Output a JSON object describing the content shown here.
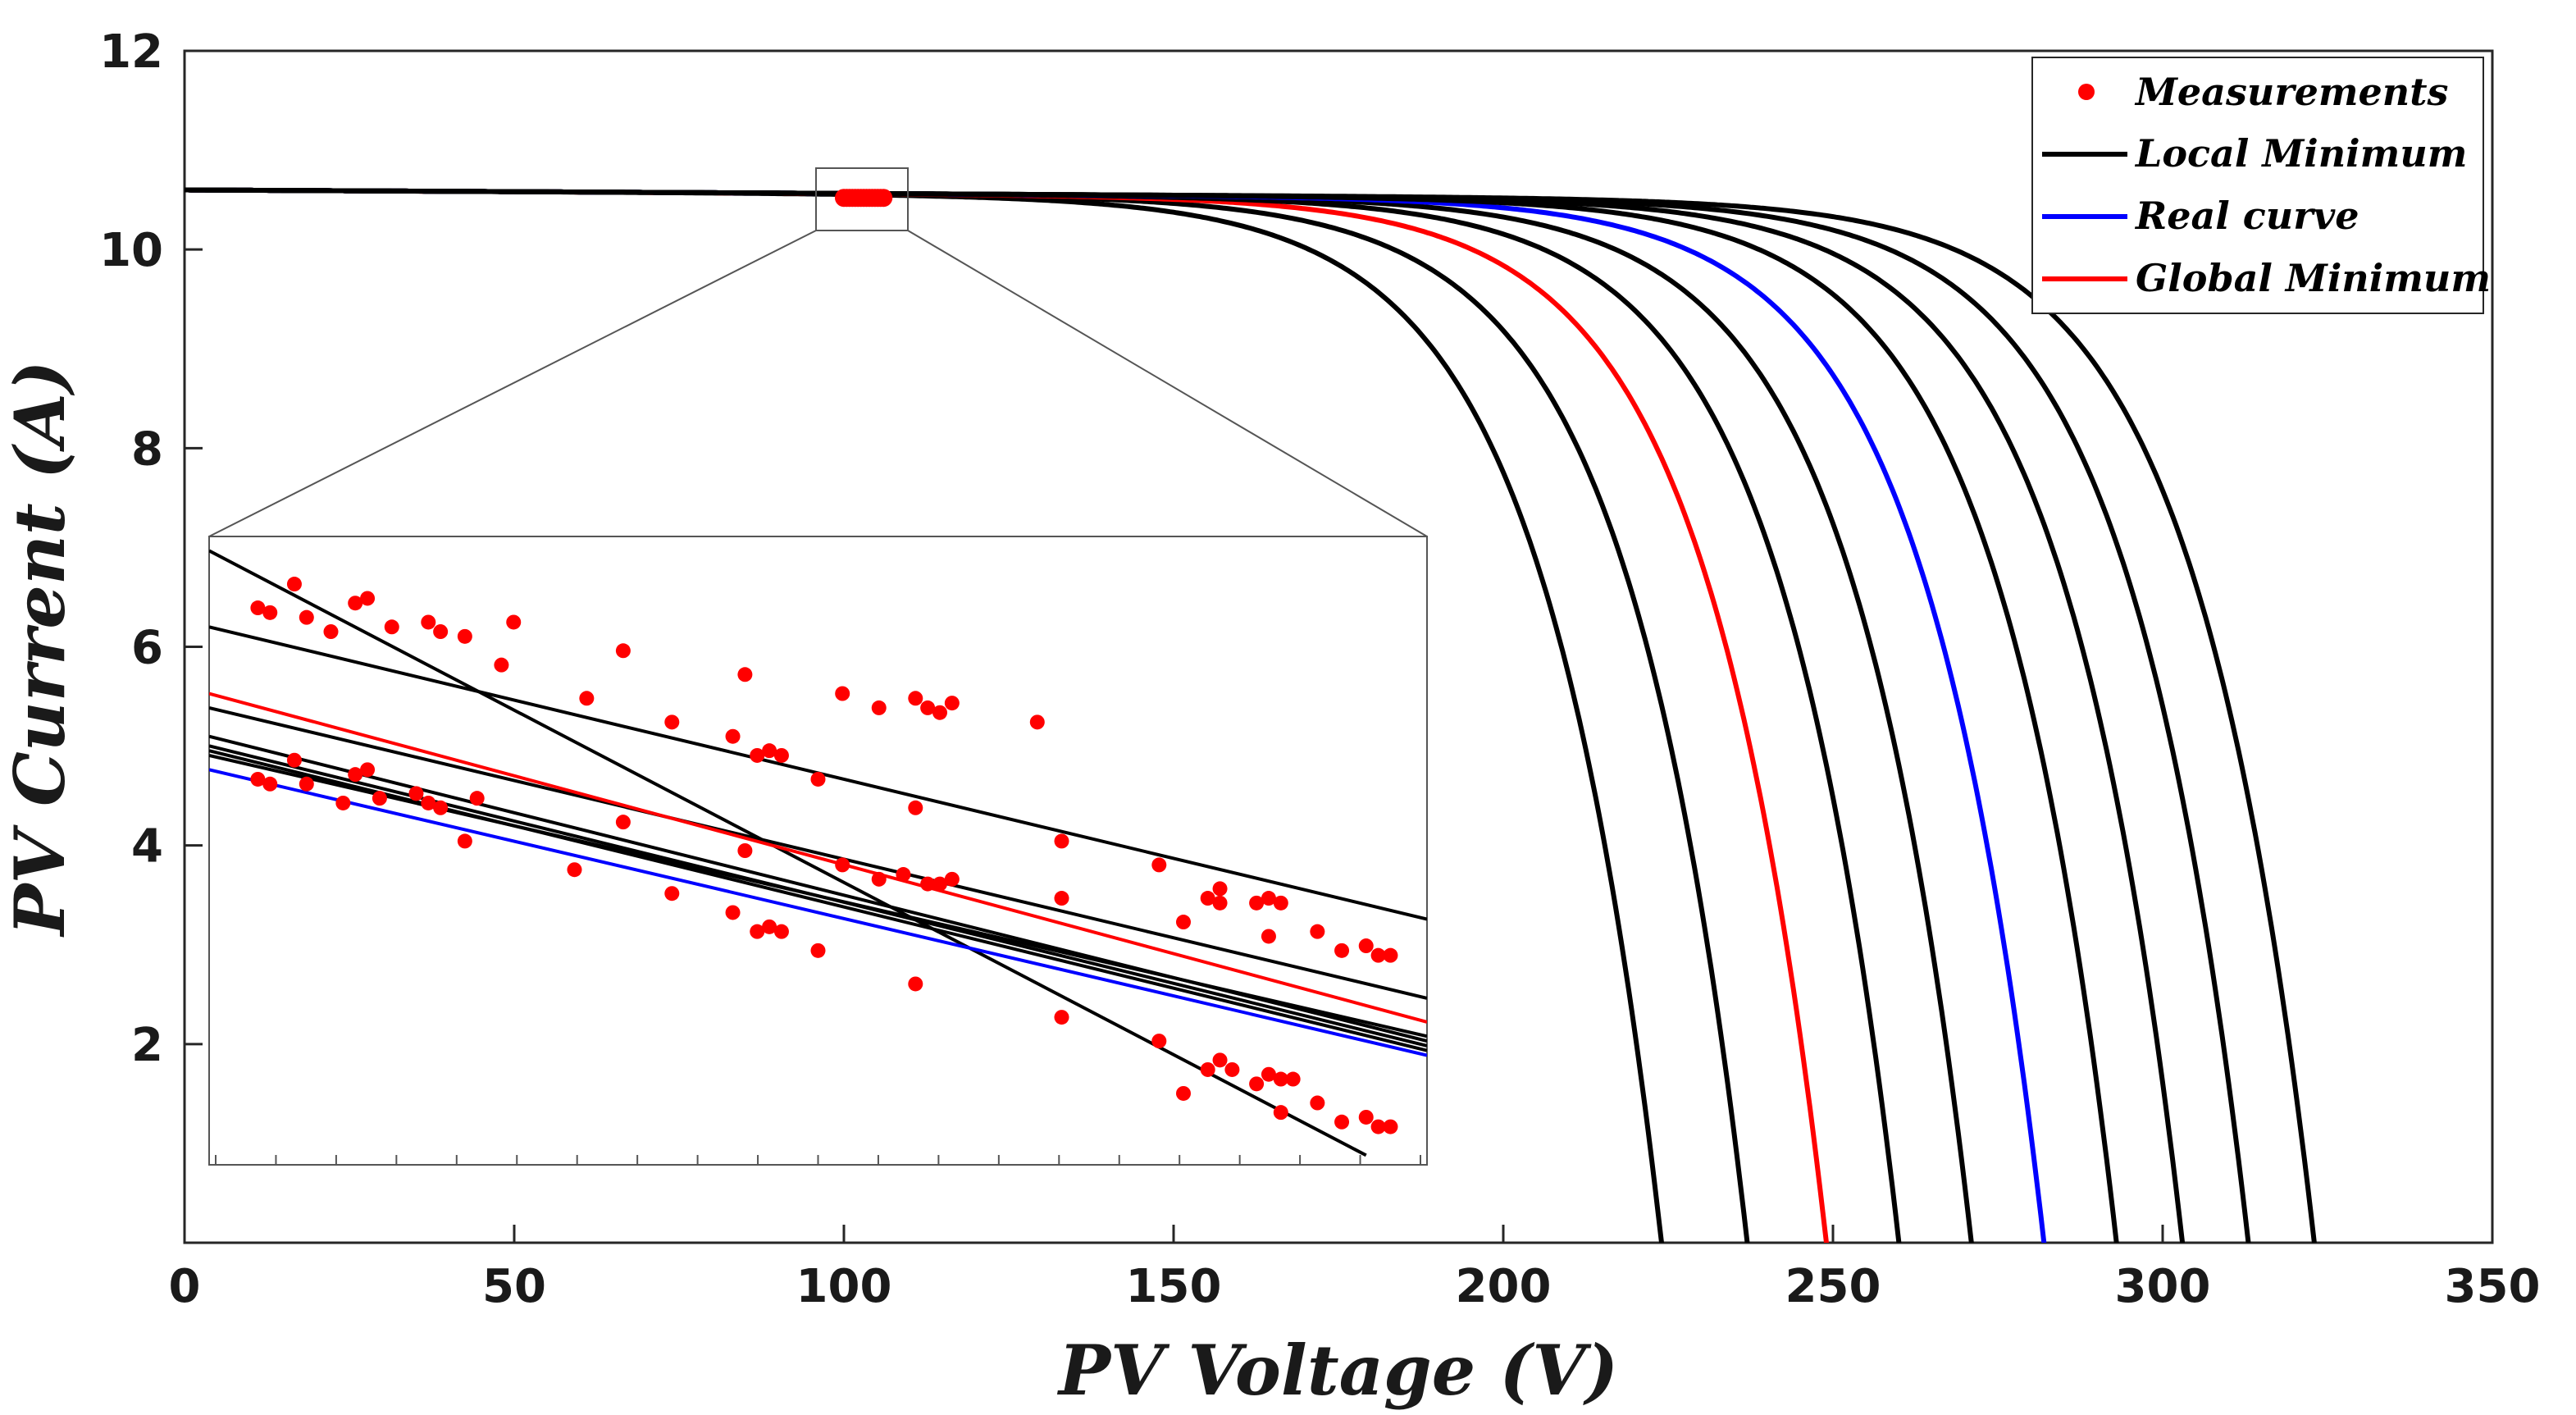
{
  "chart_data": {
    "type": "line",
    "xlabel": "PV Voltage (V)",
    "ylabel": "PV Current (A)",
    "xlim": [
      0,
      350
    ],
    "ylim": [
      0,
      12
    ],
    "xticks": [
      "0",
      "50",
      "100",
      "150",
      "200",
      "250",
      "300",
      "350"
    ],
    "yticks": [
      "2",
      "4",
      "6",
      "8",
      "10",
      "12"
    ],
    "grid": false,
    "legend_position": "top-right",
    "legend": [
      {
        "label": "Measurements",
        "kind": "marker",
        "color": "#ff0000"
      },
      {
        "label": "Local Minimum",
        "kind": "line",
        "color": "#000000"
      },
      {
        "label": "Real curve",
        "kind": "line",
        "color": "#0000ff"
      },
      {
        "label": "Global Minimum",
        "kind": "line",
        "color": "#ff0000"
      }
    ],
    "isc": 10.6,
    "curves": [
      {
        "group": "Local Minimum",
        "color": "#000000",
        "voc": 224,
        "knee": 18,
        "isc": 10.6
      },
      {
        "group": "Local Minimum",
        "color": "#000000",
        "voc": 237,
        "knee": 18,
        "isc": 10.6
      },
      {
        "group": "Global Minimum",
        "color": "#ff0000",
        "voc": 249,
        "knee": 18,
        "isc": 10.6
      },
      {
        "group": "Local Minimum",
        "color": "#000000",
        "voc": 260,
        "knee": 18,
        "isc": 10.6
      },
      {
        "group": "Local Minimum",
        "color": "#000000",
        "voc": 271,
        "knee": 18,
        "isc": 10.6
      },
      {
        "group": "Real curve",
        "color": "#0000ff",
        "voc": 282,
        "knee": 18,
        "isc": 10.6
      },
      {
        "group": "Local Minimum",
        "color": "#000000",
        "voc": 293,
        "knee": 18,
        "isc": 10.6
      },
      {
        "group": "Local Minimum",
        "color": "#000000",
        "voc": 303,
        "knee": 18,
        "isc": 10.6
      },
      {
        "group": "Local Minimum",
        "color": "#000000",
        "voc": 313,
        "knee": 18,
        "isc": 10.6
      },
      {
        "group": "Local Minimum",
        "color": "#000000",
        "voc": 323,
        "knee": 18,
        "isc": 10.6
      }
    ],
    "measurements_x_range": [
      100,
      106
    ],
    "measurements_y": 10.52,
    "inset": {
      "zoom_x_range": [
        96,
        110
      ],
      "zoom_y_range": [
        10.25,
        10.9
      ],
      "lines": [
        {
          "color": "#000000",
          "from": [
            0.0,
            7.15
          ],
          "to": [
            0.95,
            0.8
          ]
        },
        {
          "color": "#000000",
          "from": [
            0.0,
            6.35
          ],
          "to": [
            1.0,
            3.28
          ]
        },
        {
          "color": "#000000",
          "from": [
            0.0,
            5.5
          ],
          "to": [
            1.0,
            2.45
          ]
        },
        {
          "color": "#ff0000",
          "from": [
            0.0,
            5.65
          ],
          "to": [
            1.0,
            2.2
          ]
        },
        {
          "color": "#000000",
          "from": [
            0.0,
            5.2
          ],
          "to": [
            1.0,
            2.0
          ]
        },
        {
          "color": "#000000",
          "from": [
            0.0,
            5.1
          ],
          "to": [
            1.0,
            1.95
          ]
        },
        {
          "color": "#000000",
          "from": [
            0.0,
            5.05
          ],
          "to": [
            1.0,
            1.9
          ]
        },
        {
          "color": "#000000",
          "from": [
            0.0,
            5.0
          ],
          "to": [
            1.0,
            2.05
          ]
        },
        {
          "color": "#0000ff",
          "from": [
            0.0,
            4.85
          ],
          "to": [
            1.0,
            1.85
          ]
        }
      ],
      "points": [
        [
          0.04,
          6.55
        ],
        [
          0.05,
          6.5
        ],
        [
          0.07,
          6.8
        ],
        [
          0.08,
          6.45
        ],
        [
          0.1,
          6.3
        ],
        [
          0.12,
          6.6
        ],
        [
          0.13,
          6.65
        ],
        [
          0.15,
          6.35
        ],
        [
          0.18,
          6.4
        ],
        [
          0.19,
          6.3
        ],
        [
          0.21,
          6.25
        ],
        [
          0.24,
          5.95
        ],
        [
          0.25,
          6.4
        ],
        [
          0.31,
          5.6
        ],
        [
          0.34,
          6.1
        ],
        [
          0.38,
          5.35
        ],
        [
          0.43,
          5.2
        ],
        [
          0.44,
          5.85
        ],
        [
          0.45,
          5.0
        ],
        [
          0.46,
          5.05
        ],
        [
          0.47,
          5.0
        ],
        [
          0.5,
          4.75
        ],
        [
          0.52,
          5.65
        ],
        [
          0.55,
          5.5
        ],
        [
          0.58,
          5.6
        ],
        [
          0.59,
          5.5
        ],
        [
          0.6,
          5.45
        ],
        [
          0.61,
          5.55
        ],
        [
          0.68,
          5.35
        ],
        [
          0.04,
          4.75
        ],
        [
          0.05,
          4.7
        ],
        [
          0.07,
          4.95
        ],
        [
          0.08,
          4.7
        ],
        [
          0.11,
          4.5
        ],
        [
          0.12,
          4.8
        ],
        [
          0.13,
          4.85
        ],
        [
          0.14,
          4.55
        ],
        [
          0.17,
          4.6
        ],
        [
          0.18,
          4.5
        ],
        [
          0.19,
          4.45
        ],
        [
          0.21,
          4.1
        ],
        [
          0.22,
          4.55
        ],
        [
          0.3,
          3.8
        ],
        [
          0.34,
          4.3
        ],
        [
          0.38,
          3.55
        ],
        [
          0.43,
          3.35
        ],
        [
          0.44,
          4.0
        ],
        [
          0.45,
          3.15
        ],
        [
          0.46,
          3.2
        ],
        [
          0.47,
          3.15
        ],
        [
          0.5,
          2.95
        ],
        [
          0.52,
          3.85
        ],
        [
          0.55,
          3.7
        ],
        [
          0.57,
          3.75
        ],
        [
          0.58,
          4.45
        ],
        [
          0.59,
          3.65
        ],
        [
          0.6,
          3.65
        ],
        [
          0.61,
          3.7
        ],
        [
          0.7,
          4.1
        ],
        [
          0.7,
          3.5
        ],
        [
          0.78,
          3.85
        ],
        [
          0.8,
          3.25
        ],
        [
          0.82,
          3.5
        ],
        [
          0.83,
          3.6
        ],
        [
          0.83,
          3.45
        ],
        [
          0.86,
          3.45
        ],
        [
          0.87,
          3.5
        ],
        [
          0.87,
          3.1
        ],
        [
          0.88,
          3.45
        ],
        [
          0.91,
          3.15
        ],
        [
          0.93,
          2.95
        ],
        [
          0.95,
          3.0
        ],
        [
          0.96,
          2.9
        ],
        [
          0.97,
          2.9
        ],
        [
          0.58,
          2.6
        ],
        [
          0.7,
          2.25
        ],
        [
          0.78,
          2.0
        ],
        [
          0.8,
          1.45
        ],
        [
          0.82,
          1.7
        ],
        [
          0.83,
          1.8
        ],
        [
          0.84,
          1.7
        ],
        [
          0.86,
          1.55
        ],
        [
          0.87,
          1.65
        ],
        [
          0.88,
          1.6
        ],
        [
          0.88,
          1.25
        ],
        [
          0.89,
          1.6
        ],
        [
          0.91,
          1.35
        ],
        [
          0.93,
          1.15
        ],
        [
          0.95,
          1.2
        ],
        [
          0.96,
          1.1
        ],
        [
          0.97,
          1.1
        ]
      ]
    }
  }
}
